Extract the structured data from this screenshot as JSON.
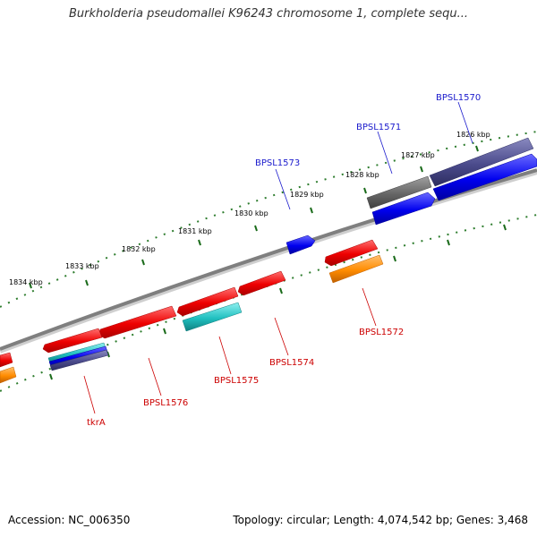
{
  "title": "Burkholderia pseudomallei K96243 chromosome 1, complete sequ...",
  "footer": {
    "accession": "Accession: NC_006350",
    "summary": "Topology: circular; Length: 4,074,542 bp; Genes: 3,468"
  },
  "colors": {
    "backbone": "#7f7f7f",
    "ticks": "#2e7d2e",
    "forward_label": "#1a1acc",
    "reverse_label": "#cc0000",
    "red_feature": "#ff0000",
    "blue_feature": "#0000ff",
    "slate_feature": "#4b4b8c",
    "gray_feature": "#666666",
    "cyan_feature": "#20c0c0",
    "orange_feature": "#ff8c00"
  },
  "scale_labels": [
    "1826 kbp",
    "1827 kbp",
    "1828 kbp",
    "1829 kbp",
    "1830 kbp",
    "1831 kbp",
    "1832 kbp",
    "1833 kbp",
    "1834 kbp"
  ],
  "forward_gene_labels": [
    "BPSL1570",
    "BPSL1571",
    "BPSL1573"
  ],
  "reverse_gene_labels": [
    "BPSL1572",
    "BPSL1574",
    "BPSL1575",
    "BPSL1576",
    "tkrA"
  ]
}
